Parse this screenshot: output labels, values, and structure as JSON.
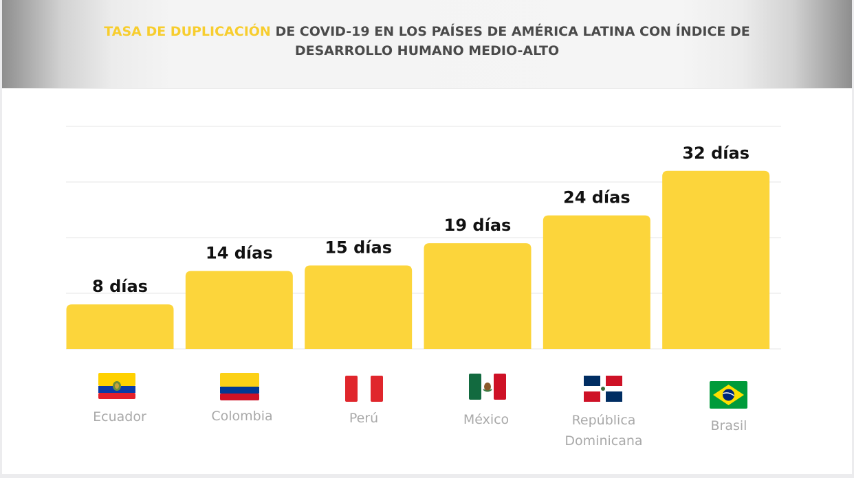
{
  "title": {
    "highlight": "TASA DE DUPLICACIÓN",
    "rest": " DE COVID-19 EN LOS PAÍSES DE AMÉRICA LATINA CON ÍNDICE DE DESARROLLO HUMANO MEDIO-ALTO"
  },
  "colors": {
    "bar": "#fcd53b",
    "highlight": "#f7cd2e",
    "title": "#4a4a4a",
    "grid": "#e6e6e6",
    "country_label": "#a9a9a9"
  },
  "chart_data": {
    "type": "bar",
    "title": "TASA DE DUPLICACIÓN DE COVID-19 EN LOS PAÍSES DE AMÉRICA LATINA CON ÍNDICE DE DESARROLLO HUMANO MEDIO-ALTO",
    "categories": [
      "Ecuador",
      "Colombia",
      "Perú",
      "México",
      "República Dominicana",
      "Brasil"
    ],
    "values": [
      8,
      14,
      15,
      19,
      24,
      32
    ],
    "data_labels": [
      "8 días",
      "14 días",
      "15 días",
      "19 días",
      "24 días",
      "32 días"
    ],
    "unit": "días",
    "ylim": [
      0,
      40
    ],
    "grid": true,
    "legend": "none",
    "flag_icons": [
      "ecuador-flag-icon",
      "colombia-flag-icon",
      "peru-flag-icon",
      "mexico-flag-icon",
      "dominican-republic-flag-icon",
      "brazil-flag-icon"
    ]
  },
  "country_labels": {
    "ecuador": "Ecuador",
    "colombia": "Colombia",
    "peru": "Perú",
    "mexico": "México",
    "dominicana_line1": "República",
    "dominicana_line2": "Dominicana",
    "brasil": "Brasil"
  }
}
